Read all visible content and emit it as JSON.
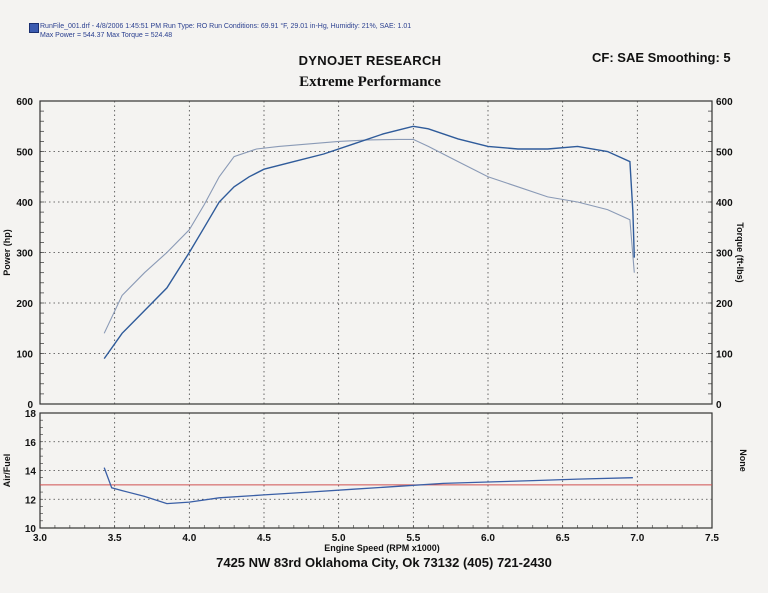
{
  "header": {
    "line1": "RunFile_001.drf - 4/8/2006 1:45:51 PM  Run Type: RO  Run Conditions: 69.91 °F, 29.01 in-Hg,  Humidity: 21%,  SAE: 1.01",
    "line2": "Max Power = 544.37  Max Torque = 524.48",
    "company": "DYNOJET RESEARCH",
    "subtitle": "Extreme Performance",
    "correction": "CF: SAE  Smoothing: 5"
  },
  "footer": "7425 NW 83rd Oklahoma City, Ok 73132     (405) 721-2430",
  "colors": {
    "torque_line": "#8a9ab6",
    "power_line": "#2f5b9a",
    "afr_line": "#3a5fa6",
    "afr_reference": "#d05050",
    "grid": "#444444",
    "frame": "#333333"
  },
  "chart_data": [
    {
      "type": "line",
      "title": "",
      "xlabel": "",
      "ylabel": "Power (hp)",
      "y2label": "Torque (ft-lbs)",
      "ylim": [
        0,
        600
      ],
      "y2lim": [
        0,
        600
      ],
      "xlim": [
        3.0,
        7.5
      ],
      "yticks": [
        "0",
        "100",
        "200",
        "300",
        "400",
        "500",
        "600"
      ],
      "y2ticks": [
        "0",
        "100",
        "200",
        "300",
        "400",
        "500",
        "600"
      ],
      "grid": true,
      "series": [
        {
          "axis": "left",
          "x": [
            3.43,
            3.55,
            3.7,
            3.85,
            4.0,
            4.1,
            4.2,
            4.3,
            4.4,
            4.5,
            4.7,
            4.9,
            5.1,
            5.3,
            5.5,
            5.6,
            5.8,
            6.0,
            6.2,
            6.4,
            6.6,
            6.8,
            6.95,
            6.97,
            6.98
          ],
          "y": [
            90,
            140,
            185,
            230,
            300,
            350,
            400,
            430,
            450,
            465,
            480,
            495,
            515,
            535,
            550,
            545,
            525,
            510,
            505,
            505,
            510,
            500,
            480,
            380,
            290
          ]
        },
        {
          "axis": "right",
          "x": [
            3.43,
            3.55,
            3.7,
            3.85,
            4.0,
            4.1,
            4.2,
            4.3,
            4.45,
            4.6,
            4.8,
            5.0,
            5.2,
            5.4,
            5.5,
            5.6,
            5.8,
            6.0,
            6.2,
            6.4,
            6.6,
            6.8,
            6.95,
            6.98
          ],
          "y": [
            140,
            215,
            260,
            300,
            345,
            395,
            450,
            490,
            505,
            510,
            515,
            520,
            523,
            524,
            524,
            510,
            480,
            450,
            430,
            410,
            400,
            385,
            365,
            260
          ]
        }
      ]
    },
    {
      "type": "line",
      "title": "",
      "xlabel": "Engine Speed (RPM x1000)",
      "ylabel": "Air/Fuel",
      "y2label": "None",
      "ylim": [
        10,
        18
      ],
      "xlim": [
        3.0,
        7.5
      ],
      "yticks": [
        "10",
        "12",
        "14",
        "16",
        "18"
      ],
      "xticks": [
        "3.0",
        "3.5",
        "4.0",
        "4.5",
        "5.0",
        "5.5",
        "6.0",
        "6.5",
        "7.0",
        "7.5"
      ],
      "grid": true,
      "reference_line": 13.0,
      "series": [
        {
          "x": [
            3.43,
            3.48,
            3.55,
            3.7,
            3.85,
            4.0,
            4.2,
            4.5,
            4.8,
            5.1,
            5.4,
            5.7,
            6.0,
            6.3,
            6.6,
            6.97
          ],
          "y": [
            14.2,
            12.8,
            12.6,
            12.2,
            11.7,
            11.8,
            12.1,
            12.3,
            12.5,
            12.7,
            12.9,
            13.1,
            13.2,
            13.3,
            13.4,
            13.5
          ]
        }
      ]
    }
  ]
}
